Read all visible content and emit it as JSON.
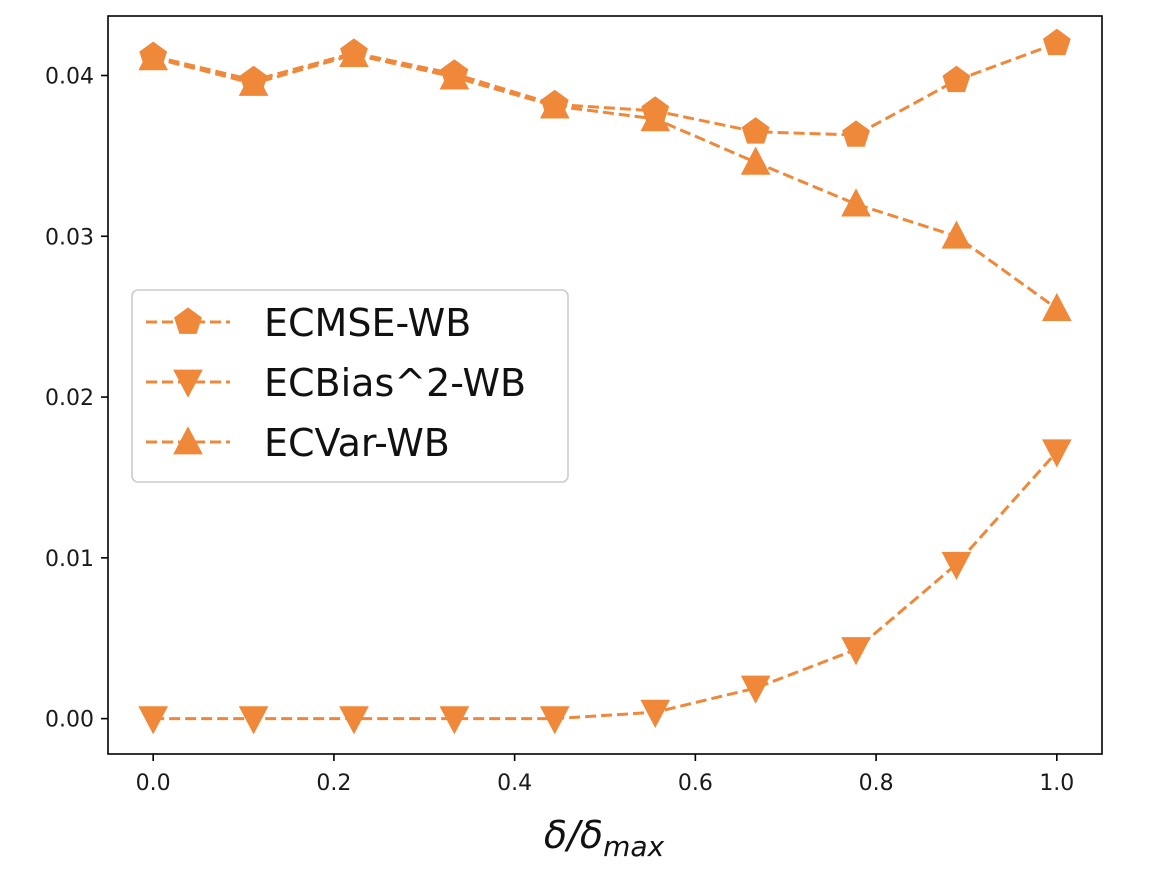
{
  "chart_data": {
    "type": "line",
    "title": "",
    "xlabel": "δ/δmax",
    "xlabel_parts": {
      "main": "δ/δ",
      "sub": "max"
    },
    "ylabel": "",
    "x": [
      0.0,
      0.1111,
      0.2222,
      0.3333,
      0.4444,
      0.5556,
      0.6667,
      0.7778,
      0.8889,
      1.0
    ],
    "xlim": [
      -0.05,
      1.05
    ],
    "ylim": [
      -0.0022,
      0.0437
    ],
    "xticks": [
      0.0,
      0.2,
      0.4,
      0.6,
      0.8,
      1.0
    ],
    "xtick_labels": [
      "0.0",
      "0.2",
      "0.4",
      "0.6",
      "0.8",
      "1.0"
    ],
    "yticks": [
      0.0,
      0.01,
      0.02,
      0.03,
      0.04
    ],
    "ytick_labels": [
      "0.00",
      "0.01",
      "0.02",
      "0.03",
      "0.04"
    ],
    "grid": false,
    "legend_position": "center-left",
    "line_style": "dashed",
    "color": "#F0883A",
    "series": [
      {
        "name": "ECMSE-WB",
        "marker": "pentagon",
        "values": [
          0.0412,
          0.0397,
          0.0414,
          0.0401,
          0.0382,
          0.0378,
          0.0365,
          0.0363,
          0.0397,
          0.042
        ]
      },
      {
        "name": "ECBias^2-WB",
        "marker": "triangle-down",
        "values": [
          0.0,
          0.0,
          0.0,
          0.0,
          0.0,
          0.0004,
          0.0019,
          0.0043,
          0.0096,
          0.0166
        ]
      },
      {
        "name": "ECVar-WB",
        "marker": "triangle-up",
        "values": [
          0.0411,
          0.0395,
          0.0413,
          0.0399,
          0.0381,
          0.0373,
          0.0346,
          0.032,
          0.03,
          0.0255
        ]
      }
    ]
  }
}
